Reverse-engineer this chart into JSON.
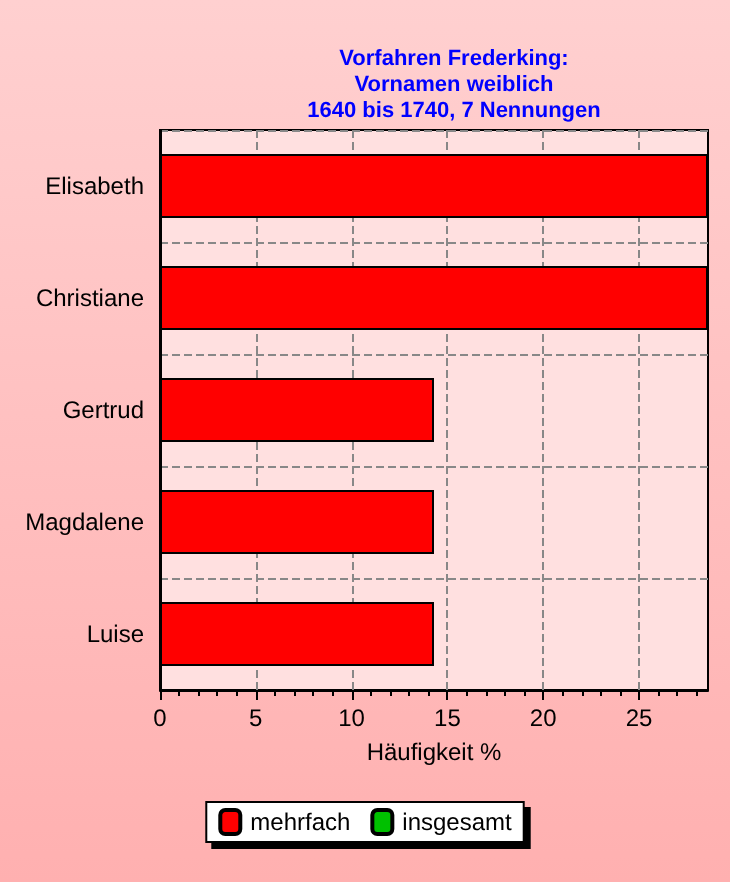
{
  "chart_data": {
    "type": "bar",
    "orientation": "horizontal",
    "title": "Vorfahren Frederking:\nVornamen weiblich\n1640 bis 1740, 7 Nennungen",
    "xlabel": "Häufigkeit %",
    "categories": [
      "Elisabeth",
      "Christiane",
      "Gertrud",
      "Magdalene",
      "Luise"
    ],
    "series": [
      {
        "name": "mehrfach",
        "color": "#ff0000",
        "values": [
          28.6,
          28.6,
          14.3,
          14.3,
          14.3
        ]
      },
      {
        "name": "insgesamt",
        "color": "#00c000",
        "values": [
          null,
          null,
          null,
          null,
          null
        ]
      }
    ],
    "xlim": [
      0,
      28.6
    ],
    "xticks": [
      0,
      5,
      10,
      15,
      20,
      25
    ],
    "grid": true,
    "legend": "bottom"
  }
}
